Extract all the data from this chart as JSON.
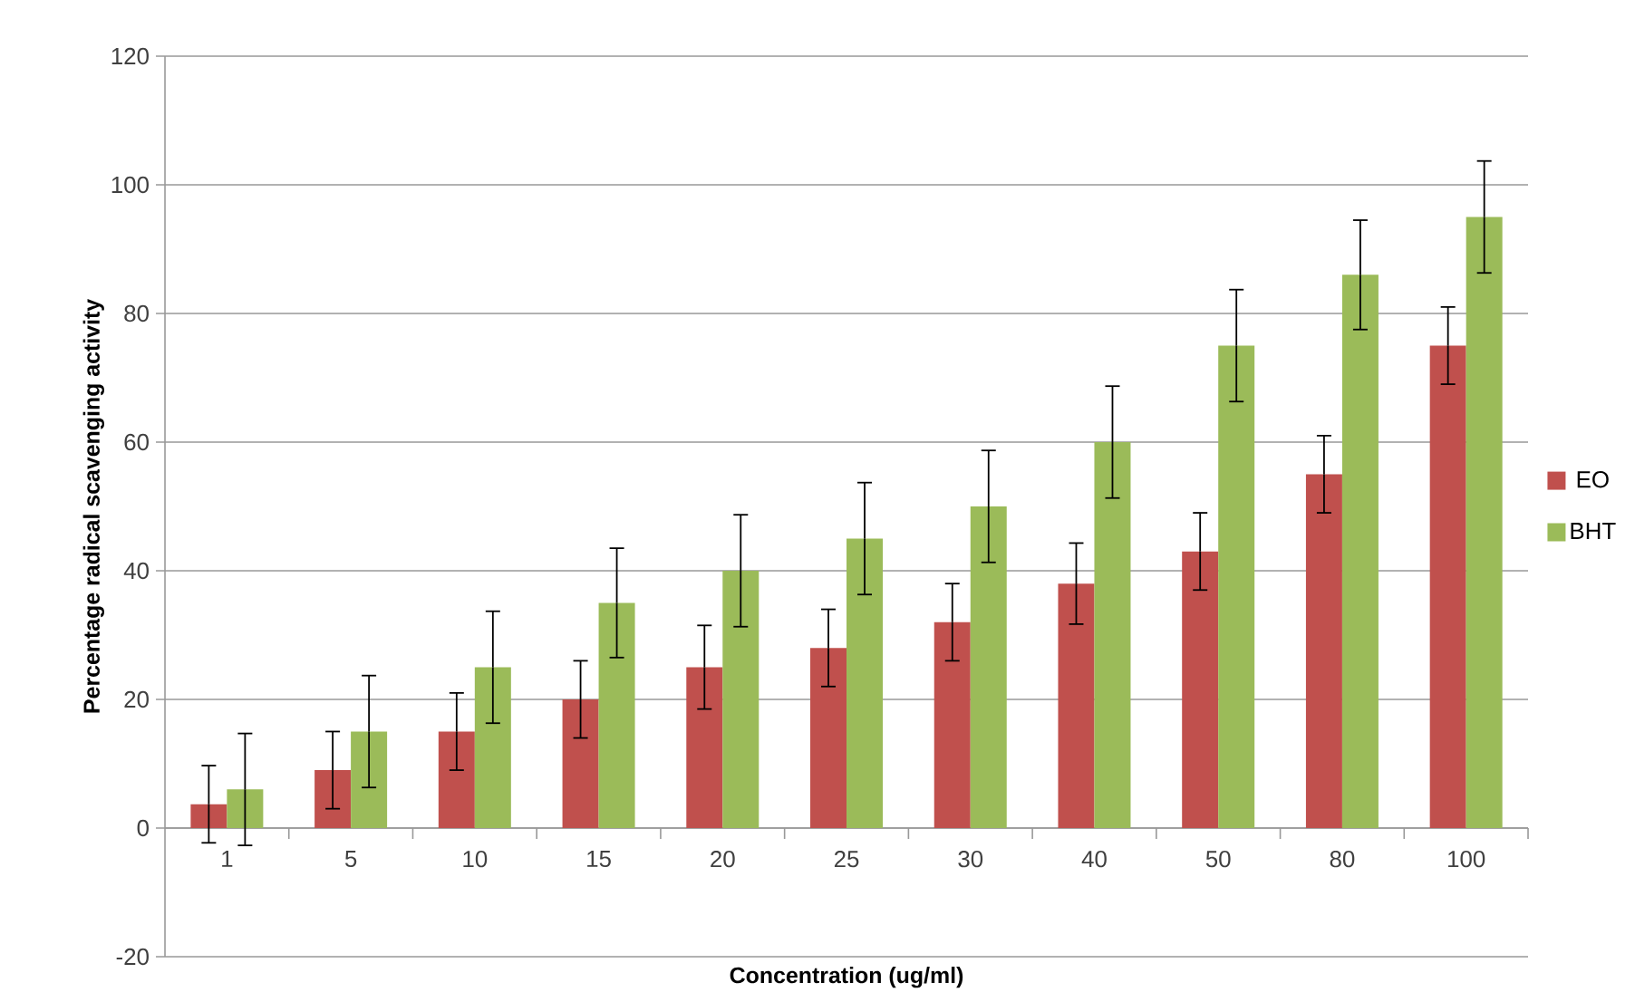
{
  "chart_data": {
    "type": "bar",
    "xlabel": "Concentration (ug/ml)",
    "ylabel": "Percentage radical scavenging activity",
    "categories": [
      "1",
      "5",
      "10",
      "15",
      "20",
      "25",
      "30",
      "40",
      "50",
      "80",
      "100"
    ],
    "series": [
      {
        "name": "EO",
        "color": "#c0504d",
        "values": [
          3.7,
          9,
          15,
          20,
          25,
          28,
          32,
          38,
          43,
          55,
          75
        ],
        "errors": [
          6,
          6,
          6,
          6,
          6.5,
          6,
          6,
          6.3,
          6,
          6,
          6
        ]
      },
      {
        "name": "BHT",
        "color": "#9bbb59",
        "values": [
          6,
          15,
          25,
          35,
          40,
          45,
          50,
          60,
          75,
          86,
          95
        ],
        "errors": [
          8.7,
          8.7,
          8.7,
          8.5,
          8.7,
          8.7,
          8.7,
          8.7,
          8.7,
          8.5,
          8.7
        ]
      }
    ],
    "ylim": [
      -20,
      120
    ],
    "yticks": [
      -20,
      0,
      20,
      40,
      60,
      80,
      100,
      120
    ],
    "grid": "y",
    "legend": "right"
  }
}
